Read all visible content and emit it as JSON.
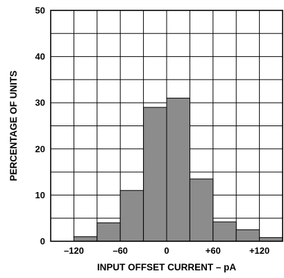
{
  "chart_data": {
    "type": "bar",
    "title": "",
    "xlabel": "INPUT OFFSET CURRENT – pA",
    "ylabel": "PERCENTAGE OF UNITS",
    "ylim": [
      0,
      50
    ],
    "xlim": [
      -150,
      150
    ],
    "grid": true,
    "bin_width": 30,
    "bins": [
      {
        "x0": -150,
        "x1": -120,
        "value": 0
      },
      {
        "x0": -120,
        "x1": -90,
        "value": 1
      },
      {
        "x0": -90,
        "x1": -60,
        "value": 4
      },
      {
        "x0": -60,
        "x1": -30,
        "value": 11
      },
      {
        "x0": -30,
        "x1": 0,
        "value": 29
      },
      {
        "x0": 0,
        "x1": 30,
        "value": 31
      },
      {
        "x0": 30,
        "x1": 60,
        "value": 13.5
      },
      {
        "x0": 60,
        "x1": 90,
        "value": 4.2
      },
      {
        "x0": 90,
        "x1": 120,
        "value": 2.5
      },
      {
        "x0": 120,
        "x1": 150,
        "value": 0.8
      }
    ],
    "x_ticks": [
      {
        "value": -120,
        "label": "–120"
      },
      {
        "value": -60,
        "label": "–60"
      },
      {
        "value": 0,
        "label": "0"
      },
      {
        "value": 60,
        "label": "+60"
      },
      {
        "value": 120,
        "label": "+120"
      }
    ],
    "y_ticks": [
      {
        "value": 0,
        "label": "0"
      },
      {
        "value": 10,
        "label": "10"
      },
      {
        "value": 20,
        "label": "20"
      },
      {
        "value": 30,
        "label": "30"
      },
      {
        "value": 40,
        "label": "40"
      },
      {
        "value": 50,
        "label": "50"
      }
    ],
    "colors": {
      "bar_fill": "#8c8c8c",
      "grid": "#000000",
      "background": "#ffffff"
    }
  }
}
